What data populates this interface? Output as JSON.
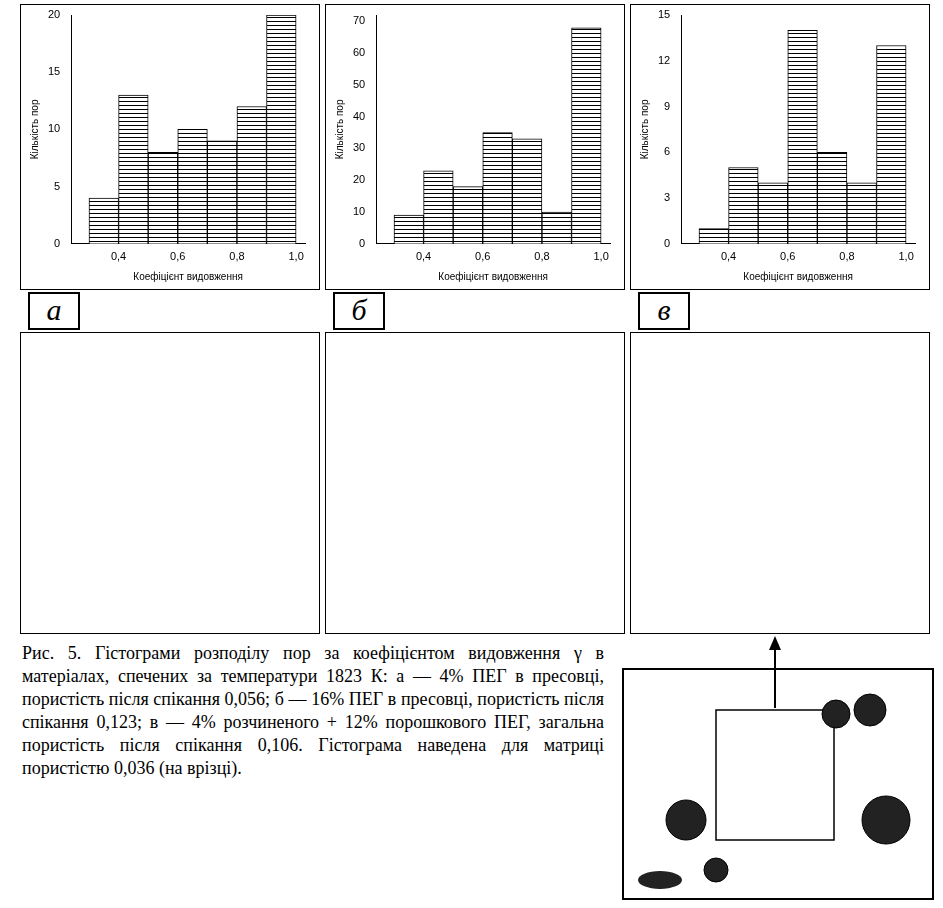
{
  "panel_labels": [
    "а",
    "б",
    "в"
  ],
  "caption": "Рис. 5. Гістограми розподілу пор за коефіцієнтом видовження γ в матеріалах, спечених за температури 1823 К: а — 4% ПЕГ в пресовці, пористість після спікання 0,056; б — 16% ПЕГ в пресовці, пористість після спікання 0,123; в — 4% розчиненого + 12% порошкового ПЕГ, загальна пористість після спікання 0,106. Гістограма наведена для матриці пористістю 0,036 (на врізці).",
  "chart_data": [
    {
      "type": "histogram",
      "x_label": "Коефіцієнт видовження",
      "y_label": "Кількість пор",
      "bins": [
        0.3,
        0.4,
        0.5,
        0.6,
        0.7,
        0.8,
        0.9,
        1.0
      ],
      "values": [
        4,
        13,
        8,
        10,
        9,
        12,
        20
      ],
      "color": "#000000",
      "xlim": [
        0.24,
        1.03
      ],
      "xticks": [
        {
          "value": 0.4,
          "label": "0,4"
        },
        {
          "value": 0.6,
          "label": "0,6"
        },
        {
          "value": 0.8,
          "label": "0,8"
        },
        {
          "value": 1.0,
          "label": "1,0"
        }
      ],
      "ylim": [
        0,
        20
      ],
      "yticks": [
        0,
        5,
        10,
        15,
        20
      ],
      "grid": false
    },
    {
      "type": "histogram",
      "x_label": "Коефіцієнт видовження",
      "y_label": "Кількість пор",
      "bins": [
        0.3,
        0.4,
        0.5,
        0.6,
        0.7,
        0.8,
        0.9,
        1.0
      ],
      "values": [
        9,
        23,
        18,
        35,
        33,
        10,
        68
      ],
      "color": "#000000",
      "xlim": [
        0.24,
        1.03
      ],
      "xticks": [
        {
          "value": 0.4,
          "label": "0,4"
        },
        {
          "value": 0.6,
          "label": "0,6"
        },
        {
          "value": 0.8,
          "label": "0,8"
        },
        {
          "value": 1.0,
          "label": "1,0"
        }
      ],
      "ylim": [
        0,
        72
      ],
      "yticks": [
        0,
        10,
        20,
        30,
        40,
        50,
        60,
        70
      ],
      "grid": false
    },
    {
      "type": "histogram",
      "x_label": "Коефіцієнт видовження",
      "y_label": "Кількість пор",
      "bins": [
        0.3,
        0.4,
        0.5,
        0.6,
        0.7,
        0.8,
        0.9,
        1.0
      ],
      "values": [
        1,
        5,
        4,
        14,
        6,
        4,
        13
      ],
      "color": "#000000",
      "xlim": [
        0.24,
        1.03
      ],
      "xticks": [
        {
          "value": 0.4,
          "label": "0,4"
        },
        {
          "value": 0.6,
          "label": "0,6"
        },
        {
          "value": 0.8,
          "label": "0,8"
        },
        {
          "value": 1.0,
          "label": "1,0"
        }
      ],
      "ylim": [
        0,
        15
      ],
      "yticks": [
        0,
        3,
        6,
        9,
        12,
        15
      ],
      "grid": false
    }
  ]
}
